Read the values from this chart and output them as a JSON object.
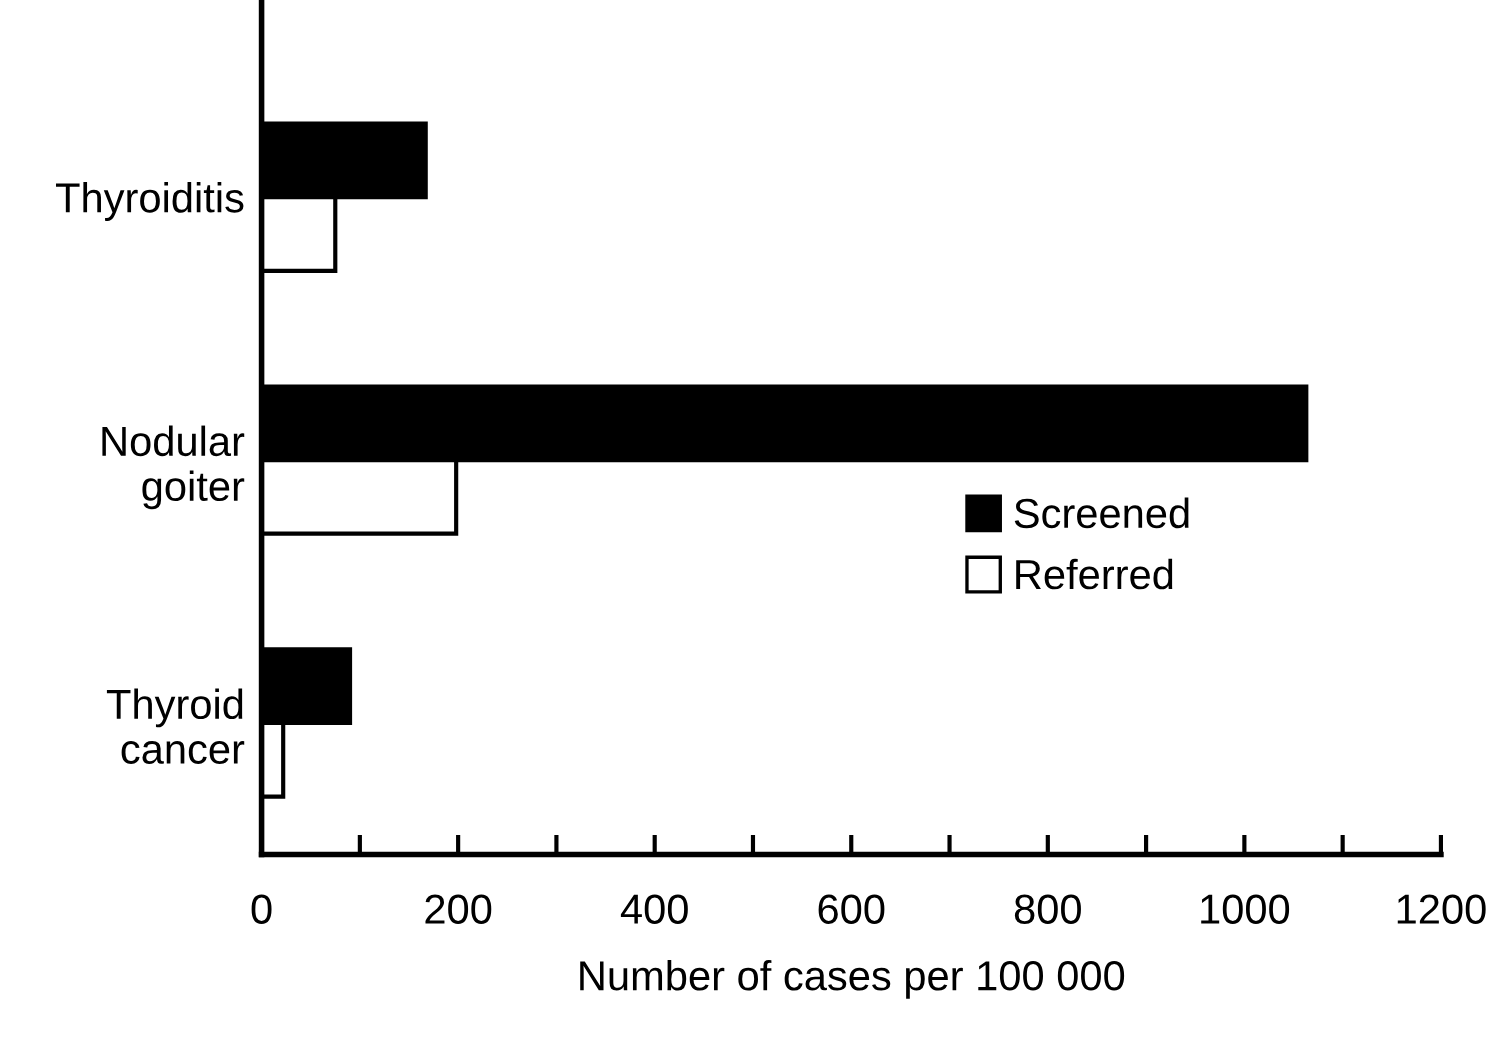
{
  "chart_data": {
    "type": "bar",
    "orientation": "horizontal",
    "xlabel": "Number of cases per 100 000",
    "categories": [
      "Thyroiditis",
      "Nodular\ngoiter",
      "Thyroid\ncancer"
    ],
    "series": [
      {
        "name": "Screened",
        "color": "#000000",
        "values": [
          167,
          1063,
          90
        ]
      },
      {
        "name": "Referred",
        "color": "#ffffff",
        "values": [
          75,
          198,
          22
        ]
      }
    ],
    "xlim": [
      0,
      1200
    ],
    "xticks": [
      0,
      {
        "value": 100,
        "label": null
      },
      200,
      {
        "value": 300,
        "label": null
      },
      400,
      {
        "value": 500,
        "label": null
      },
      600,
      {
        "value": 700,
        "label": null
      },
      800,
      {
        "value": 900,
        "label": null
      },
      1000,
      {
        "value": 1100,
        "label": null
      },
      1200
    ],
    "legend": "right",
    "grid": false
  }
}
